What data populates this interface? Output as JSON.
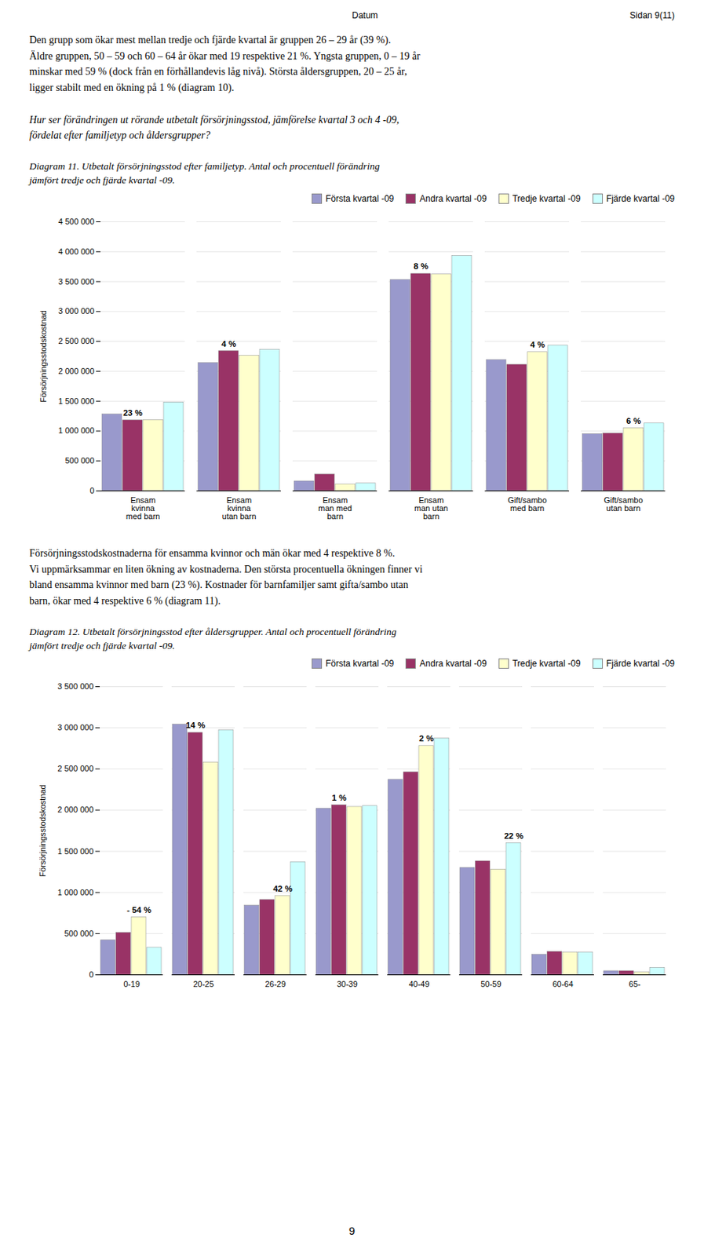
{
  "page_header_left": "Datum",
  "page_header_right": "Sidan 9(11)",
  "intro_text": "Den grupp som ökar mest mellan tredje och fjärde kvartal är gruppen 26 – 29 år (39 %).\nÄldre gruppen, 50 – 59 och 60 – 64 år ökar med 19 respektive 21 %. Yngsta gruppen, 0 – 19 år\nminskar med 59 % (dock från en förhållandevis låg nivå). Största åldersgruppen, 20 – 25 år,\nligger stabilt med en ökning på 1 % (diagram 10).",
  "question_text": "Hur ser förändringen ut rörande utbetalt försörjningsstod, jämförelse kvartal 3 och 4 -09,\nfördelat efter familjetyp och åldersgrupper?",
  "middle_text": "Försörjningsstodskostnaderna för ensamma kvinnor och män ökar med 4 respektive 8 %.\nVi uppmärksammar en liten ökning av kostnaderna. Den största procentuella ökningen finner vi\nbland ensamma kvinnor med barn (23 %). Kostnader för barnfamiljer samt gifta/sambo utan\nbarn, ökar med 4 respektive 6 % (diagram 11).",
  "page_number": "9",
  "chart_data": [
    {
      "type": "bar",
      "title": "Diagram 11. Utbetalt försörjningsstod efter familjetyp. Antal och procentuell förändring\njämfört tredje och fjärde kvartal -09.",
      "ylabel": "Försörjningsstodskostnad",
      "categories": [
        "Ensam\nkvinna\nmed barn",
        "Ensam\nkvinna\nutan barn",
        "Ensam\nman med\nbarn",
        "Ensam\nman utan\nbarn",
        "Gift/sambo\nmed barn",
        "Gift/sambo\nutan barn"
      ],
      "series": [
        {
          "name": "Första kvartal -09",
          "color": "#9999cc",
          "values": [
            1280000,
            2140000,
            160000,
            3530000,
            2190000,
            950000
          ]
        },
        {
          "name": "Andra kvartal -09",
          "color": "#993366",
          "values": [
            1180000,
            2340000,
            275000,
            3630000,
            2110000,
            960000
          ]
        },
        {
          "name": "Tredje kvartal -09",
          "color": "#ffffcc",
          "values": [
            1185000,
            2260000,
            110000,
            3620000,
            2320000,
            1050000
          ]
        },
        {
          "name": "Fjärde kvartal -09",
          "color": "#ccffff",
          "values": [
            1480000,
            2360000,
            125000,
            3930000,
            2430000,
            1130000
          ]
        }
      ],
      "ylim": [
        0,
        4500000
      ],
      "yticks": [
        0,
        {
          "value": 500000,
          "label": "500 000"
        },
        {
          "value": 1000000,
          "label": "1 000 000"
        },
        {
          "value": 1500000,
          "label": "1 500 000"
        },
        {
          "value": 2000000,
          "label": "2 000 000"
        },
        {
          "value": 2500000,
          "label": "2 500 000"
        },
        {
          "value": 3000000,
          "label": "3 000 000"
        },
        {
          "value": 3500000,
          "label": "3 500 000"
        },
        {
          "value": 4000000,
          "label": "4 000 000"
        },
        {
          "value": 4500000,
          "label": "4 500 000"
        }
      ],
      "grid": true,
      "legend": "upper right",
      "annotations": [
        {
          "category": "Ensam\nkvinna\nmed barn",
          "series": "Andra kvartal -09",
          "text": "23 %"
        },
        {
          "category": "Ensam\nkvinna\nutan barn",
          "series": "Andra kvartal -09",
          "text": "4 %"
        },
        {
          "category": "Ensam\nman utan\nbarn",
          "series": "Andra kvartal -09",
          "text": "8 %"
        },
        {
          "category": "Gift/sambo\nmed barn",
          "series": "Tredje kvartal -09",
          "text": "4 %"
        },
        {
          "category": "Gift/sambo\nutan barn",
          "series": "Tredje kvartal -09",
          "text": "6 %"
        }
      ]
    },
    {
      "type": "bar",
      "title": "Diagram 12. Utbetalt försörjningsstod efter åldersgrupper. Antal och procentuell förändring\njämfört tredje och fjärde kvartal -09.",
      "ylabel": "Försörjningsstodskostnad",
      "categories": [
        "0-19",
        "20-25",
        "26-29",
        "30-39",
        "40-49",
        "50-59",
        "60-64",
        "65-"
      ],
      "series": [
        {
          "name": "Första kvartal -09",
          "color": "#9999cc",
          "values": [
            420000,
            3040000,
            840000,
            2020000,
            2370000,
            1300000,
            245000,
            45000
          ]
        },
        {
          "name": "Andra kvartal -09",
          "color": "#993366",
          "values": [
            510000,
            2940000,
            910000,
            2060000,
            2460000,
            1380000,
            280000,
            45000
          ]
        },
        {
          "name": "Tredje kvartal -09",
          "color": "#ffffcc",
          "values": [
            700000,
            2580000,
            960000,
            2040000,
            2780000,
            1280000,
            270000,
            30000
          ]
        },
        {
          "name": "Fjärde kvartal -09",
          "color": "#ccffff",
          "values": [
            330000,
            2970000,
            1370000,
            2050000,
            2870000,
            1600000,
            270000,
            85000
          ]
        }
      ],
      "ylim": [
        0,
        3500000
      ],
      "yticks": [
        0,
        {
          "value": 500000,
          "label": "500 000"
        },
        {
          "value": 1000000,
          "label": "1 000 000"
        },
        {
          "value": 1500000,
          "label": "1 500 000"
        },
        {
          "value": 2000000,
          "label": "2 000 000"
        },
        {
          "value": 2500000,
          "label": "2 500 000"
        },
        {
          "value": 3000000,
          "label": "3 000 000"
        },
        {
          "value": 3500000,
          "label": "3 500 000"
        }
      ],
      "grid": true,
      "legend": "upper right",
      "annotations": [
        {
          "category": "0-19",
          "series": "Tredje kvartal -09",
          "text": "- 54 %"
        },
        {
          "category": "20-25",
          "series": "Andra kvartal -09",
          "text": "14 %"
        },
        {
          "category": "26-29",
          "series": "Tredje kvartal -09",
          "text": "42 %"
        },
        {
          "category": "30-39",
          "series": "Andra kvartal -09",
          "text": "1 %"
        },
        {
          "category": "40-49",
          "series": "Tredje kvartal -09",
          "text": "2 %"
        },
        {
          "category": "50-59",
          "series": "Fjärde kvartal -09",
          "text": "22 %"
        }
      ]
    }
  ]
}
